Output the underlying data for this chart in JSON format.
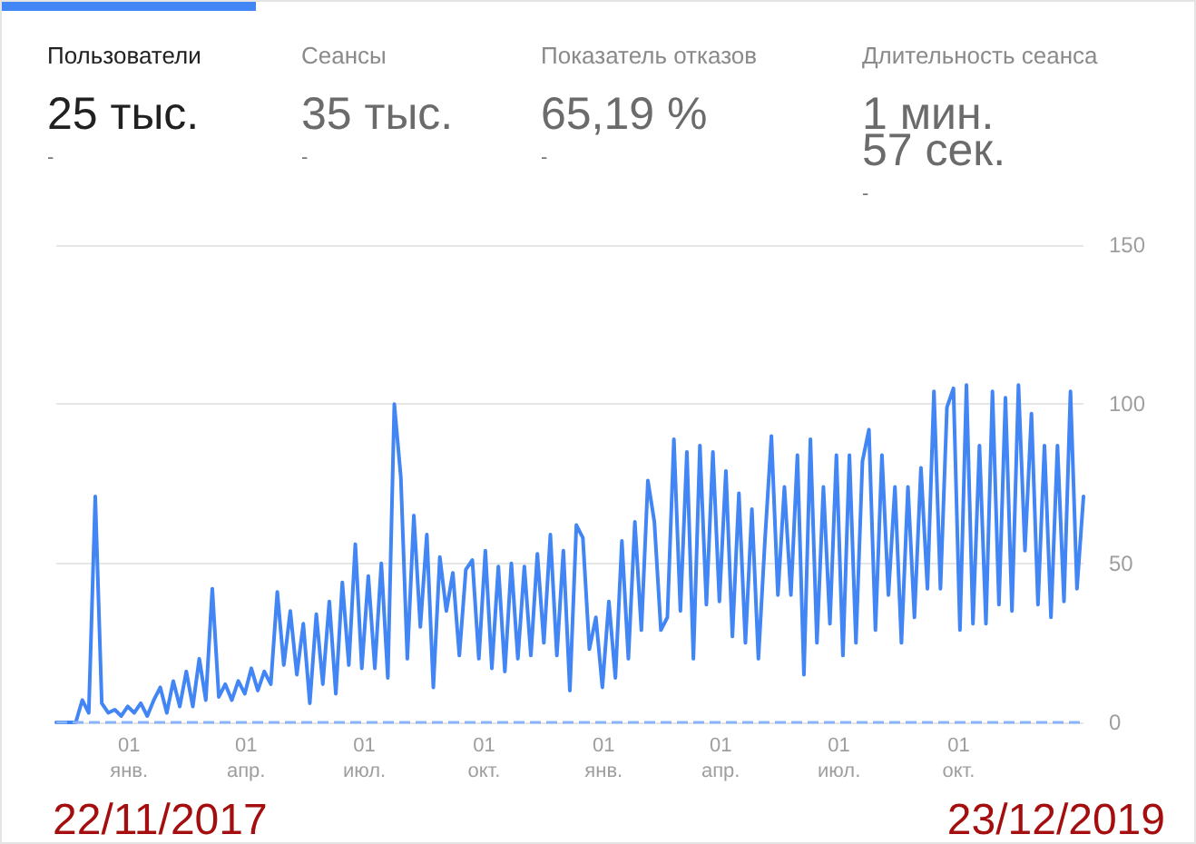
{
  "chart_data": [
    {
      "type": "other",
      "categories": [
        "Пользователи",
        "Сеансы",
        "Показатель отказов",
        "Длительность сеанса"
      ],
      "value_labels": [
        "25 тыс.",
        "35 тыс.",
        "65,19 %",
        "1 мин. 57 сек."
      ],
      "annotations": [
        "-",
        "-",
        "-",
        "-"
      ]
    },
    {
      "type": "line",
      "color": "#4285f4",
      "x": [
        "2017-11-06",
        "2017-11-11",
        "2017-11-16",
        "2017-11-21",
        "2017-11-26",
        "2017-12-01",
        "2017-12-06",
        "2017-12-11",
        "2017-12-16",
        "2017-12-21",
        "2017-12-26",
        "2017-12-31",
        "2018-01-05",
        "2018-01-10",
        "2018-01-15",
        "2018-01-20",
        "2018-01-25",
        "2018-01-30",
        "2018-02-04",
        "2018-02-09",
        "2018-02-14",
        "2018-02-19",
        "2018-02-24",
        "2018-03-01",
        "2018-03-06",
        "2018-03-11",
        "2018-03-16",
        "2018-03-21",
        "2018-03-26",
        "2018-03-31",
        "2018-04-05",
        "2018-04-10",
        "2018-04-15",
        "2018-04-20",
        "2018-04-25",
        "2018-04-30",
        "2018-05-05",
        "2018-05-10",
        "2018-05-15",
        "2018-05-20",
        "2018-05-25",
        "2018-05-30",
        "2018-06-04",
        "2018-06-09",
        "2018-06-14",
        "2018-06-19",
        "2018-06-24",
        "2018-06-29",
        "2018-07-04",
        "2018-07-09",
        "2018-07-14",
        "2018-07-19",
        "2018-07-24",
        "2018-07-29",
        "2018-08-03",
        "2018-08-08",
        "2018-08-13",
        "2018-08-18",
        "2018-08-23",
        "2018-08-28",
        "2018-09-02",
        "2018-09-07",
        "2018-09-12",
        "2018-09-17",
        "2018-09-22",
        "2018-09-27",
        "2018-10-02",
        "2018-10-07",
        "2018-10-12",
        "2018-10-17",
        "2018-10-22",
        "2018-10-27",
        "2018-11-01",
        "2018-11-06",
        "2018-11-11",
        "2018-11-16",
        "2018-11-21",
        "2018-11-26",
        "2018-12-01",
        "2018-12-06",
        "2018-12-11",
        "2018-12-16",
        "2018-12-21",
        "2018-12-26",
        "2018-12-31",
        "2019-01-05",
        "2019-01-10",
        "2019-01-15",
        "2019-01-20",
        "2019-01-25",
        "2019-01-30",
        "2019-02-04",
        "2019-02-09",
        "2019-02-14",
        "2019-02-19",
        "2019-02-24",
        "2019-03-01",
        "2019-03-06",
        "2019-03-11",
        "2019-03-16",
        "2019-03-21",
        "2019-03-26",
        "2019-03-31",
        "2019-04-05",
        "2019-04-10",
        "2019-04-15",
        "2019-04-20",
        "2019-04-25",
        "2019-04-30",
        "2019-05-05",
        "2019-05-10",
        "2019-05-15",
        "2019-05-20",
        "2019-05-25",
        "2019-05-30",
        "2019-06-04",
        "2019-06-09",
        "2019-06-14",
        "2019-06-19",
        "2019-06-24",
        "2019-06-29",
        "2019-07-04",
        "2019-07-09",
        "2019-07-14",
        "2019-07-19",
        "2019-07-24",
        "2019-07-29",
        "2019-08-03",
        "2019-08-08",
        "2019-08-13",
        "2019-08-18",
        "2019-08-23",
        "2019-08-28",
        "2019-09-02",
        "2019-09-07",
        "2019-09-12",
        "2019-09-17",
        "2019-09-22",
        "2019-09-27",
        "2019-10-02",
        "2019-10-07",
        "2019-10-12",
        "2019-10-17",
        "2019-10-22",
        "2019-10-27",
        "2019-11-01",
        "2019-11-06",
        "2019-11-11",
        "2019-11-16",
        "2019-11-21",
        "2019-11-26",
        "2019-12-01",
        "2019-12-06",
        "2019-12-11",
        "2019-12-16",
        "2019-12-21",
        "2019-12-26",
        "2019-12-31",
        "2020-01-05"
      ],
      "values": [
        0,
        0,
        0,
        0,
        7,
        3,
        71,
        6,
        3,
        4,
        2,
        5,
        3,
        6,
        2,
        7,
        11,
        3,
        13,
        5,
        16,
        5,
        20,
        7,
        42,
        8,
        12,
        7,
        13,
        9,
        17,
        10,
        16,
        12,
        41,
        18,
        35,
        15,
        31,
        6,
        34,
        12,
        38,
        9,
        44,
        18,
        56,
        17,
        46,
        17,
        50,
        14,
        100,
        77,
        20,
        65,
        30,
        59,
        11,
        52,
        35,
        47,
        21,
        48,
        51,
        20,
        54,
        17,
        49,
        16,
        50,
        20,
        49,
        21,
        53,
        25,
        59,
        21,
        54,
        10,
        62,
        58,
        23,
        33,
        11,
        38,
        14,
        57,
        20,
        63,
        29,
        76,
        63,
        29,
        33,
        89,
        35,
        85,
        20,
        87,
        37,
        85,
        38,
        79,
        27,
        72,
        25,
        67,
        20,
        57,
        90,
        40,
        74,
        40,
        84,
        15,
        89,
        25,
        74,
        31,
        84,
        21,
        84,
        25,
        82,
        92,
        29,
        84,
        40,
        74,
        25,
        74,
        33,
        80,
        42,
        104,
        42,
        99,
        105,
        29,
        106,
        31,
        87,
        31,
        104,
        37,
        102,
        35,
        106,
        54,
        97,
        37,
        87,
        33,
        87,
        38,
        104,
        42,
        71
      ],
      "xlim": [
        "2017-11-06",
        "2020-01-05"
      ],
      "xticks": [
        {
          "value": "2018-01-01",
          "label": "01\nянв."
        },
        {
          "value": "2018-04-01",
          "label": "01\nапр."
        },
        {
          "value": "2018-07-01",
          "label": "01\nиюл."
        },
        {
          "value": "2018-10-01",
          "label": "01\nокт."
        },
        {
          "value": "2019-01-01",
          "label": "01\nянв."
        },
        {
          "value": "2019-04-01",
          "label": "01\nапр."
        },
        {
          "value": "2019-07-01",
          "label": "01\nиюл."
        },
        {
          "value": "2019-10-01",
          "label": "01\nокт."
        }
      ],
      "ylim": [
        0,
        150
      ],
      "yticks": [
        0,
        50,
        100,
        150
      ],
      "grid": "y",
      "ref_lines": [
        {
          "axis": "y",
          "value": 0,
          "color": "#8ab4f8",
          "line_style": "dashed"
        }
      ],
      "annotations": [
        "22/11/2017",
        "23/12/2019"
      ]
    }
  ]
}
